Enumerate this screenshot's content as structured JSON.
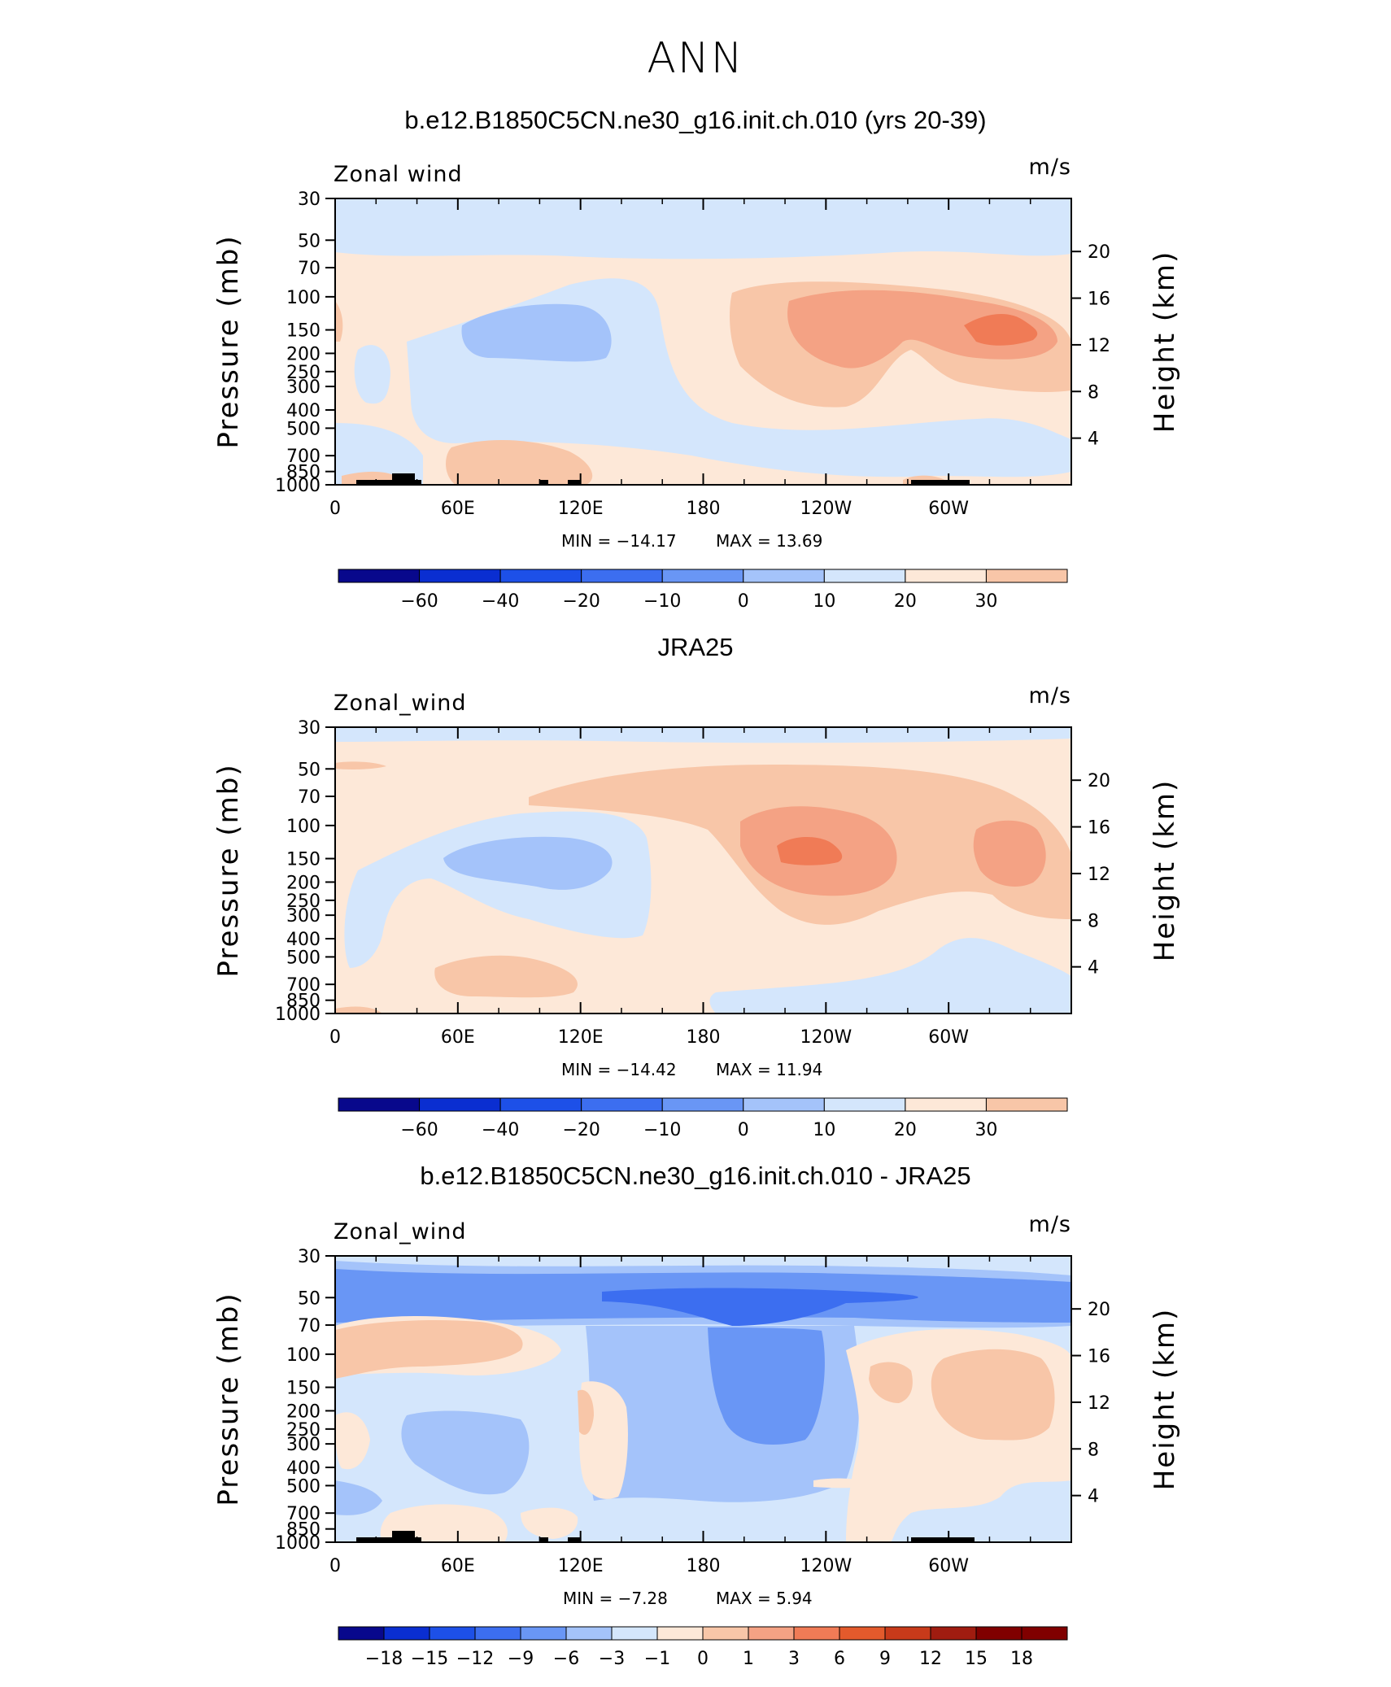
{
  "title": "ANN",
  "colors": {
    "neg60": "#08088c",
    "neg50": "#0a2ed1",
    "neg40": "#1d50e8",
    "neg30": "#3c6ef0",
    "neg20": "#6996f5",
    "neg10": "#a4c3fa",
    "neg5": "#d4e6fc",
    "pos0": "#fde8d8",
    "pos5": "#f8c6a8",
    "pos10": "#f4a284",
    "pos15": "#f07b56",
    "pos20": "#e35a2c",
    "pos25": "#c83a1a",
    "pos30": "#a01c10",
    "pos35": "#800000",
    "land": "#000000"
  },
  "chart_data": [
    {
      "type": "heatmap",
      "title": "b.e12.B1850C5CN.ne30_g16.init.ch.010 (yrs 20-39)",
      "variable_label": "Zonal wind",
      "units_label": "m/s",
      "xlabel": "",
      "ylabel": "Pressure (mb)",
      "y2label": "Height (km)",
      "x_ticks": [
        "0",
        "60E",
        "120E",
        "180",
        "120W",
        "60W"
      ],
      "y_ticks": [
        "30",
        "50",
        "70",
        "100",
        "150",
        "200",
        "250",
        "300",
        "400",
        "500",
        "700",
        "850",
        "1000"
      ],
      "y2_ticks": [
        "20",
        "16",
        "12",
        "8",
        "4"
      ],
      "ylim": [
        1000,
        30
      ],
      "min_label": "MIN = −14.17",
      "max_label": "MAX =   13.69",
      "min": -14.17,
      "max": 13.69,
      "colorbar_labels": [
        "−60",
        "−40",
        "−20",
        "−10",
        "0",
        "10",
        "20",
        "30"
      ]
    },
    {
      "type": "heatmap",
      "title": "JRA25",
      "variable_label": "Zonal_wind",
      "units_label": "m/s",
      "xlabel": "",
      "ylabel": "Pressure (mb)",
      "y2label": "Height (km)",
      "x_ticks": [
        "0",
        "60E",
        "120E",
        "180",
        "120W",
        "60W"
      ],
      "y_ticks": [
        "30",
        "50",
        "70",
        "100",
        "150",
        "200",
        "250",
        "300",
        "400",
        "500",
        "700",
        "850",
        "1000"
      ],
      "y2_ticks": [
        "20",
        "16",
        "12",
        "8",
        "4"
      ],
      "ylim": [
        1000,
        30
      ],
      "min_label": "MIN = −14.42",
      "max_label": "MAX =   11.94",
      "min": -14.42,
      "max": 11.94,
      "colorbar_labels": [
        "−60",
        "−40",
        "−20",
        "−10",
        "0",
        "10",
        "20",
        "30"
      ]
    },
    {
      "type": "heatmap",
      "title": "b.e12.B1850C5CN.ne30_g16.init.ch.010 - JRA25",
      "variable_label": "Zonal_wind",
      "units_label": "m/s",
      "xlabel": "",
      "ylabel": "Pressure (mb)",
      "y2label": "Height (km)",
      "x_ticks": [
        "0",
        "60E",
        "120E",
        "180",
        "120W",
        "60W"
      ],
      "y_ticks": [
        "30",
        "50",
        "70",
        "100",
        "150",
        "200",
        "250",
        "300",
        "400",
        "500",
        "700",
        "850",
        "1000"
      ],
      "y2_ticks": [
        "20",
        "16",
        "12",
        "8",
        "4"
      ],
      "ylim": [
        1000,
        30
      ],
      "min_label": "MIN =   −7.28",
      "max_label": "MAX =    5.94",
      "min": -7.28,
      "max": 5.94,
      "colorbar_labels": [
        "−18",
        "−15",
        "−12",
        "−9",
        "−6",
        "−3",
        "−1",
        "0",
        "1",
        "3",
        "6",
        "9",
        "12",
        "15",
        "18"
      ]
    }
  ]
}
